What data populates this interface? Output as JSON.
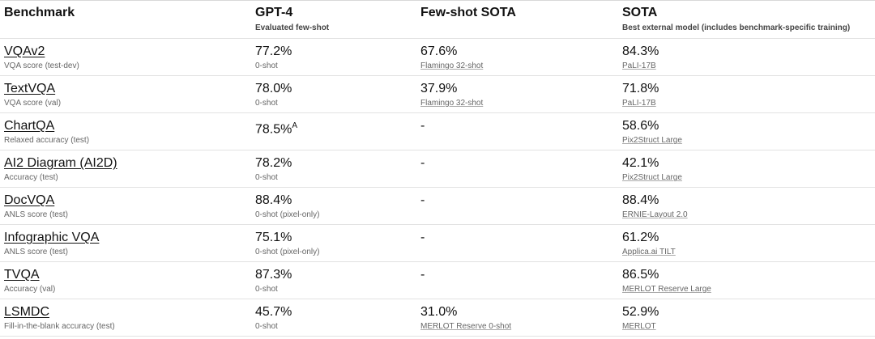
{
  "table": {
    "header": [
      {
        "title": "Benchmark"
      },
      {
        "title": "GPT-4",
        "subtitle": "Evaluated few-shot"
      },
      {
        "title": "Few-shot SOTA"
      },
      {
        "title": "SOTA",
        "subtitle": "Best external model (includes benchmark-specific training)"
      }
    ],
    "rows": [
      {
        "benchmark": "VQAv2",
        "metric": "VQA score (test-dev)",
        "gpt4": "77.2%",
        "gpt4_note": "0-shot",
        "fewshot": "67.6%",
        "fewshot_note": "Flamingo 32-shot",
        "sota": "84.3%",
        "sota_note": "PaLI-17B"
      },
      {
        "benchmark": "TextVQA",
        "metric": "VQA score (val)",
        "gpt4": "78.0%",
        "gpt4_note": "0-shot",
        "fewshot": "37.9%",
        "fewshot_note": "Flamingo 32-shot",
        "sota": "71.8%",
        "sota_note": "PaLI-17B"
      },
      {
        "benchmark": "ChartQA",
        "metric": "Relaxed accuracy (test)",
        "gpt4": "78.5%",
        "gpt4_sup": "A",
        "fewshot": "-",
        "sota": "58.6%",
        "sota_note": "Pix2Struct Large"
      },
      {
        "benchmark": "AI2 Diagram (AI2D)",
        "metric": "Accuracy (test)",
        "gpt4": "78.2%",
        "gpt4_note": "0-shot",
        "fewshot": "-",
        "sota": "42.1%",
        "sota_note": "Pix2Struct Large"
      },
      {
        "benchmark": "DocVQA",
        "metric": "ANLS score (test)",
        "gpt4": "88.4%",
        "gpt4_note": "0-shot (pixel-only)",
        "fewshot": "-",
        "sota": "88.4%",
        "sota_note": "ERNIE-Layout 2.0"
      },
      {
        "benchmark": "Infographic VQA",
        "metric": "ANLS score (test)",
        "gpt4": "75.1%",
        "gpt4_note": "0-shot (pixel-only)",
        "fewshot": "-",
        "sota": "61.2%",
        "sota_note": "Applica.ai TILT"
      },
      {
        "benchmark": "TVQA",
        "metric": "Accuracy (val)",
        "gpt4": "87.3%",
        "gpt4_note": "0-shot",
        "fewshot": "-",
        "sota": "86.5%",
        "sota_note": "MERLOT Reserve Large"
      },
      {
        "benchmark": "LSMDC",
        "metric": "Fill-in-the-blank accuracy (test)",
        "gpt4": "45.7%",
        "gpt4_note": "0-shot",
        "fewshot": "31.0%",
        "fewshot_note": "MERLOT Reserve 0-shot",
        "sota": "52.9%",
        "sota_note": "MERLOT"
      }
    ]
  }
}
